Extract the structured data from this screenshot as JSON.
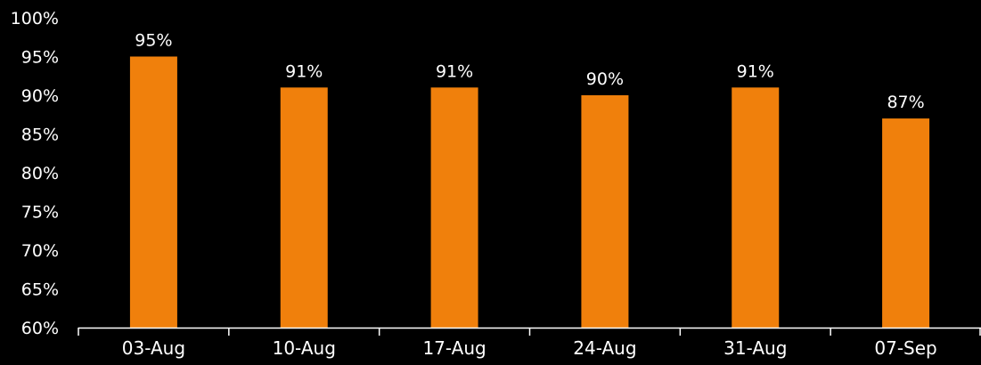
{
  "chart_data": {
    "type": "bar",
    "categories": [
      "03-Aug",
      "10-Aug",
      "17-Aug",
      "24-Aug",
      "31-Aug",
      "07-Sep"
    ],
    "values": [
      95,
      91,
      91,
      90,
      91,
      87
    ],
    "data_labels": [
      "95%",
      "91%",
      "91%",
      "90%",
      "91%",
      "87%"
    ],
    "y_ticks": [
      60,
      65,
      70,
      75,
      80,
      85,
      90,
      95,
      100
    ],
    "y_tick_labels": [
      "60%",
      "65%",
      "70%",
      "75%",
      "80%",
      "85%",
      "90%",
      "95%",
      "100%"
    ],
    "ylim": [
      60,
      100
    ],
    "title": "",
    "xlabel": "",
    "ylabel": "",
    "grid": false,
    "legend": "none",
    "colors": {
      "bar": "#f0800c",
      "background": "#000000",
      "axis": "#ffffff",
      "text": "#ffffff"
    }
  }
}
